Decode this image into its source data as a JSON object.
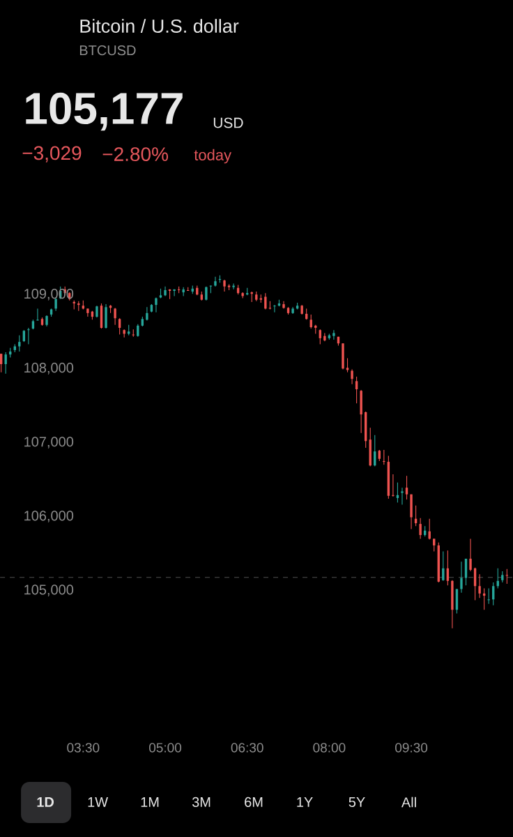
{
  "chart_data": {
    "type": "candlestick",
    "title": "Bitcoin / U.S. dollar",
    "subtitle": "BTCUSD",
    "annotations": [
      "105,177",
      "USD",
      "−3,029",
      "−2.80%",
      "today",
      "1D",
      "1W",
      "1M",
      "3M",
      "6M",
      "1Y",
      "5Y",
      "All"
    ],
    "x": [
      2,
      2.0833,
      2.1667,
      2.25,
      2.3333,
      2.4167,
      2.5,
      2.5833,
      2.6667,
      2.75,
      2.8333,
      2.9167,
      3,
      3.0833,
      3.1667,
      3.25,
      3.3333,
      3.4167,
      3.5,
      3.5833,
      3.6667,
      3.75,
      3.8333,
      3.9167,
      4,
      4.0833,
      4.1667,
      4.25,
      4.3333,
      4.4167,
      4.5,
      4.5833,
      4.6667,
      4.75,
      4.8333,
      4.9167,
      5,
      5.0833,
      5.1667,
      5.25,
      5.3333,
      5.4167,
      5.5,
      5.5833,
      5.6667,
      5.75,
      5.8333,
      5.9167,
      6,
      6.0833,
      6.1667,
      6.25,
      6.3333,
      6.4167,
      6.5,
      6.5833,
      6.6667,
      6.75,
      6.8333,
      6.9167,
      7,
      7.0833,
      7.1667,
      7.25,
      7.3333,
      7.4167,
      7.5,
      7.5833,
      7.6667,
      7.75,
      7.8333,
      7.9167,
      8,
      8.0833,
      8.1667,
      8.25,
      8.3333,
      8.4167,
      8.5,
      8.5833,
      8.6667,
      8.75,
      8.8333,
      8.9167,
      9,
      9.0833,
      9.1667,
      9.25,
      9.3333,
      9.4167,
      9.5,
      9.5833,
      9.6667,
      9.75,
      9.8333,
      9.9167,
      10,
      10.0833,
      10.1667,
      10.25,
      10.3333,
      10.4167,
      10.5,
      10.5833,
      10.6667,
      10.75,
      10.8333,
      10.9167,
      11,
      11.0833,
      11.1667,
      11.25
    ],
    "ohlc": [
      [
        108200,
        108200,
        107950,
        108060
      ],
      [
        108060,
        108220,
        107930,
        108190
      ],
      [
        108190,
        108280,
        108150,
        108230
      ],
      [
        108250,
        108330,
        108220,
        108300
      ],
      [
        108300,
        108450,
        108230,
        108360
      ],
      [
        108370,
        108520,
        108360,
        108510
      ],
      [
        108520,
        108550,
        108330,
        108530
      ],
      [
        108540,
        108660,
        108530,
        108640
      ],
      [
        108650,
        108810,
        108650,
        108660
      ],
      [
        108670,
        108690,
        108580,
        108590
      ],
      [
        108590,
        108720,
        108570,
        108710
      ],
      [
        108730,
        108810,
        108700,
        108800
      ],
      [
        108810,
        108960,
        108780,
        108940
      ],
      [
        108950,
        109110,
        108940,
        109050
      ],
      [
        109070,
        109110,
        108990,
        109020
      ],
      [
        109020,
        109030,
        108920,
        108940
      ],
      [
        108900,
        108920,
        108800,
        108880
      ],
      [
        108880,
        108910,
        108780,
        108860
      ],
      [
        108850,
        108920,
        108800,
        108810
      ],
      [
        108810,
        108810,
        108700,
        108750
      ],
      [
        108770,
        108780,
        108660,
        108700
      ],
      [
        108700,
        108850,
        108690,
        108840
      ],
      [
        108850,
        108880,
        108540,
        108550
      ],
      [
        108550,
        108870,
        108540,
        108830
      ],
      [
        108850,
        108860,
        108750,
        108820
      ],
      [
        108810,
        108820,
        108590,
        108680
      ],
      [
        108670,
        108680,
        108460,
        108550
      ],
      [
        108520,
        108530,
        108420,
        108470
      ],
      [
        108470,
        108590,
        108450,
        108500
      ],
      [
        108460,
        108530,
        108430,
        108450
      ],
      [
        108440,
        108600,
        108430,
        108580
      ],
      [
        108580,
        108700,
        108570,
        108670
      ],
      [
        108660,
        108830,
        108650,
        108750
      ],
      [
        108770,
        108870,
        108760,
        108860
      ],
      [
        108860,
        108960,
        108760,
        108950
      ],
      [
        108960,
        109080,
        108950,
        108990
      ],
      [
        108990,
        109110,
        108980,
        109060
      ],
      [
        109070,
        109070,
        108940,
        109050
      ],
      [
        109050,
        109070,
        108980,
        109070
      ],
      [
        109070,
        109110,
        109020,
        109060
      ],
      [
        109030,
        109100,
        108980,
        109070
      ],
      [
        109060,
        109100,
        109050,
        109050
      ],
      [
        109040,
        109120,
        109010,
        109080
      ],
      [
        109090,
        109120,
        108990,
        109000
      ],
      [
        109000,
        109040,
        108920,
        108930
      ],
      [
        108930,
        109110,
        108920,
        109100
      ],
      [
        109110,
        109120,
        109020,
        109120
      ],
      [
        109120,
        109240,
        109110,
        109180
      ],
      [
        109200,
        109260,
        109160,
        109210
      ],
      [
        109190,
        109200,
        109040,
        109110
      ],
      [
        109120,
        109140,
        109060,
        109100
      ],
      [
        109100,
        109150,
        109070,
        109120
      ],
      [
        109090,
        109130,
        109000,
        109020
      ],
      [
        109020,
        109030,
        108950,
        108980
      ],
      [
        109000,
        109090,
        108990,
        109020
      ],
      [
        109030,
        109040,
        108900,
        109010
      ],
      [
        109000,
        109040,
        108910,
        108930
      ],
      [
        108950,
        109000,
        108890,
        108930
      ],
      [
        108970,
        109020,
        108800,
        108810
      ],
      [
        108820,
        108910,
        108800,
        108810
      ],
      [
        108840,
        108860,
        108760,
        108850
      ],
      [
        108850,
        108930,
        108840,
        108880
      ],
      [
        108870,
        108910,
        108810,
        108820
      ],
      [
        108820,
        108830,
        108730,
        108750
      ],
      [
        108750,
        108830,
        108740,
        108810
      ],
      [
        108810,
        108890,
        108800,
        108850
      ],
      [
        108850,
        108860,
        108730,
        108740
      ],
      [
        108740,
        108810,
        108660,
        108670
      ],
      [
        108660,
        108730,
        108540,
        108560
      ],
      [
        108580,
        108590,
        108470,
        108550
      ],
      [
        108520,
        108530,
        108330,
        108410
      ],
      [
        108440,
        108480,
        108370,
        108380
      ],
      [
        108410,
        108470,
        108390,
        108450
      ],
      [
        108440,
        108520,
        108390,
        108480
      ],
      [
        108430,
        108430,
        108310,
        108340
      ],
      [
        108340,
        108340,
        107990,
        108000
      ],
      [
        108010,
        108140,
        107950,
        107980
      ],
      [
        107970,
        107990,
        107790,
        107860
      ],
      [
        107830,
        107890,
        107530,
        107720
      ],
      [
        107700,
        107710,
        107130,
        107380
      ],
      [
        107410,
        107420,
        106930,
        107020
      ],
      [
        107040,
        107200,
        106680,
        106690
      ],
      [
        106690,
        107100,
        106680,
        106880
      ],
      [
        106890,
        106900,
        106750,
        106780
      ],
      [
        106750,
        106900,
        106700,
        106740
      ],
      [
        106740,
        106820,
        106240,
        106280
      ],
      [
        106290,
        106570,
        106270,
        106280
      ],
      [
        106250,
        106460,
        106190,
        106290
      ],
      [
        106320,
        106390,
        106160,
        106340
      ],
      [
        106390,
        106550,
        106230,
        106300
      ],
      [
        106300,
        106300,
        105830,
        105990
      ],
      [
        105970,
        106150,
        105870,
        105910
      ],
      [
        105900,
        105980,
        105700,
        105750
      ],
      [
        105750,
        105870,
        105730,
        105810
      ],
      [
        105800,
        105970,
        105690,
        105700
      ],
      [
        105700,
        105700,
        105530,
        105610
      ],
      [
        105610,
        105650,
        105110,
        105120
      ],
      [
        105140,
        105530,
        105130,
        105300
      ],
      [
        105300,
        105540,
        105070,
        105130
      ],
      [
        105130,
        105140,
        104490,
        104740
      ],
      [
        104740,
        105020,
        104690,
        105020
      ],
      [
        105020,
        105390,
        104970,
        105170
      ],
      [
        105170,
        105430,
        105070,
        105430
      ],
      [
        105430,
        105700,
        105260,
        105280
      ],
      [
        105300,
        105310,
        104870,
        105060
      ],
      [
        105060,
        105220,
        104900,
        104960
      ],
      [
        104960,
        105030,
        104740,
        104930
      ],
      [
        104870,
        105030,
        104820,
        104880
      ],
      [
        104880,
        105110,
        104800,
        105060
      ],
      [
        105060,
        105300,
        105030,
        105130
      ],
      [
        105140,
        105260,
        105110,
        105210
      ],
      [
        105210,
        105290,
        105090,
        105200
      ]
    ],
    "xlim": [
      1.98,
      11.36
    ],
    "ylim": [
      101670,
      112980
    ],
    "xticks": [
      {
        "value": 3.5,
        "label": "03:30"
      },
      {
        "value": 5,
        "label": "05:00"
      },
      {
        "value": 6.5,
        "label": "06:30"
      },
      {
        "value": 8,
        "label": "08:00"
      },
      {
        "value": 9.5,
        "label": "09:30"
      }
    ],
    "yticks": [
      {
        "value": 105000,
        "label": "105,000"
      },
      {
        "value": 106000,
        "label": "106,000"
      },
      {
        "value": 107000,
        "label": "107,000"
      },
      {
        "value": 108000,
        "label": "108,000"
      },
      {
        "value": 109000,
        "label": "109,000"
      }
    ],
    "ref_lines": [
      {
        "axis": "y",
        "value": 105177,
        "color": "#5a5a5a",
        "line_style": "dashed"
      }
    ]
  }
}
